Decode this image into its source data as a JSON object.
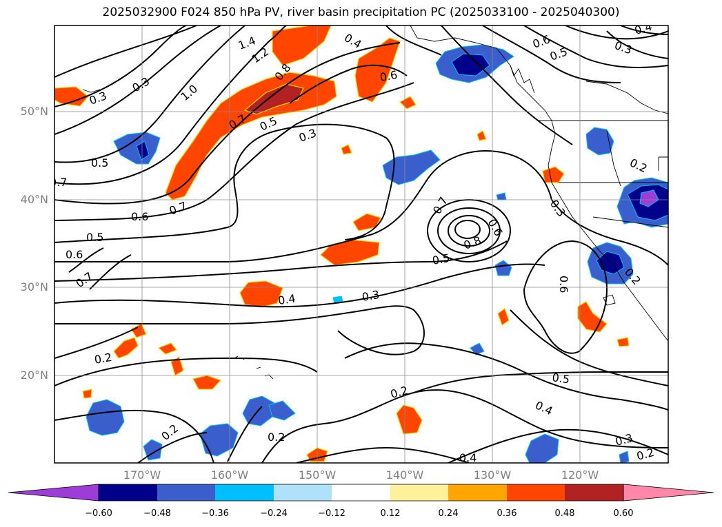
{
  "title": "2025032900 F024 850 hPa PV, river basin precipitation PC (2025033100 - 2025040300)",
  "map": {
    "lat_labels": [
      "50°N",
      "40°N",
      "30°N",
      "20°N"
    ],
    "lon_labels": [
      "170°W",
      "160°W",
      "150°W",
      "140°W",
      "130°W",
      "120°W"
    ],
    "contour_labels": [
      "0.3",
      "1.4",
      "1.2",
      "0.8",
      "0.4",
      "0.6",
      "0.5",
      "0.6",
      "0.3",
      "0.4",
      "0.3",
      "1.0",
      "0.7",
      "0.5",
      "0.3",
      "0.5",
      "0.7",
      "0.7",
      "0.6",
      "0.5",
      "0.6",
      "0.7",
      "0.6",
      "0.8",
      "0.5",
      "0.7",
      "0.4",
      "0.3",
      "0.3",
      "0.2",
      "0.6",
      "0.2",
      "0.5",
      "0.4",
      "0.2",
      "0.3",
      "0.2",
      "0.2",
      "0.4",
      "0.2",
      "0.2"
    ]
  },
  "colorbar": {
    "ticks": [
      "−0.60",
      "−0.48",
      "−0.36",
      "−0.24",
      "−0.12",
      "0.12",
      "0.24",
      "0.36",
      "0.48",
      "0.60"
    ],
    "colors": [
      "#9b3dd6",
      "#00008b",
      "#3a5fcd",
      "#00bfff",
      "#afe1fb",
      "#ffffff",
      "#fff09a",
      "#ffa500",
      "#ff4500",
      "#b22222",
      "#ff88aa"
    ]
  }
}
